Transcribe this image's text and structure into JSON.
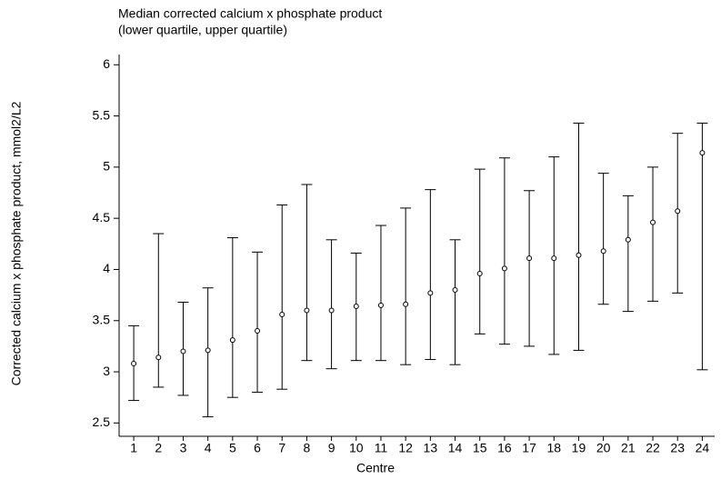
{
  "chart_data": {
    "type": "errorbar",
    "title": "Median corrected calcium x phosphate product",
    "subtitle": "(lower quartile, upper quartile)",
    "x_label": "Centre",
    "y_label": "Corrected calcium x phosphate product, mmol2/L2",
    "categories": [
      "1",
      "2",
      "3",
      "4",
      "5",
      "6",
      "7",
      "8",
      "9",
      "10",
      "11",
      "12",
      "13",
      "14",
      "15",
      "16",
      "17",
      "18",
      "19",
      "20",
      "21",
      "22",
      "23",
      "24"
    ],
    "series": [
      {
        "color": "#000000",
        "values": [
          3.08,
          3.14,
          3.2,
          3.21,
          3.31,
          3.4,
          3.56,
          3.6,
          3.6,
          3.64,
          3.65,
          3.66,
          3.77,
          3.8,
          3.96,
          4.01,
          4.11,
          4.11,
          4.14,
          4.18,
          4.29,
          4.46,
          4.57,
          5.14
        ],
        "lower": [
          2.72,
          2.85,
          2.77,
          2.56,
          2.75,
          2.8,
          2.83,
          3.11,
          3.03,
          3.11,
          3.11,
          3.07,
          3.12,
          3.07,
          3.37,
          3.27,
          3.25,
          3.17,
          3.21,
          3.66,
          3.59,
          3.69,
          3.77,
          3.02
        ],
        "upper": [
          3.45,
          4.35,
          3.68,
          3.82,
          4.31,
          4.17,
          4.63,
          4.83,
          4.29,
          4.16,
          4.43,
          4.6,
          4.78,
          4.29,
          4.98,
          5.09,
          4.77,
          5.1,
          5.43,
          4.94,
          4.72,
          5.0,
          5.33,
          5.43
        ]
      }
    ],
    "ylim": [
      2.37,
      6.1
    ],
    "yticks": [
      2.5,
      3,
      3.5,
      4,
      4.5,
      5,
      5.5,
      6
    ],
    "grid": false
  }
}
